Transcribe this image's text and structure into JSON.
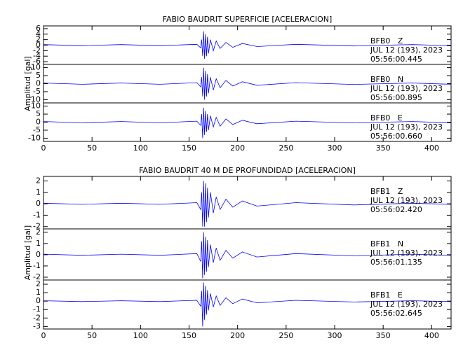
{
  "chart_data": [
    {
      "type": "line",
      "title": "FABIO BAUDRIT SUPERFICIE [ACELERACION]",
      "y_label": "Amplitud [gal]",
      "xlim": [
        0,
        420
      ],
      "xticks": [
        0,
        50,
        100,
        150,
        200,
        250,
        300,
        350,
        400
      ],
      "x": [
        0,
        40,
        80,
        120,
        158,
        162,
        163,
        164,
        165,
        166,
        167,
        168,
        169,
        170,
        172,
        175,
        178,
        182,
        188,
        195,
        205,
        220,
        260,
        320,
        380,
        420
      ],
      "panels": [
        {
          "station": "BFB0   Z",
          "date": "JUL 12 (193), 2023",
          "time": "05:56:00.445",
          "color": "#0000ff",
          "ylim": [
            -7,
            7
          ],
          "yticks": [
            -6,
            -4,
            -2,
            0,
            2,
            4,
            6
          ],
          "values": [
            0.2,
            -0.2,
            0.2,
            -0.2,
            0.3,
            -1,
            2,
            -4,
            5,
            -5,
            4,
            -4,
            3,
            -3,
            2,
            -2,
            1.5,
            -1.2,
            1,
            -0.8,
            0.6,
            -0.5,
            0.3,
            -0.3,
            0.2,
            -0.2
          ]
        },
        {
          "station": "BFB0   N",
          "date": "JUL 12 (193), 2023",
          "time": "05:56:00.895",
          "color": "#0000ff",
          "ylim": [
            -12,
            12
          ],
          "yticks": [
            -10,
            -5,
            0,
            5,
            10
          ],
          "values": [
            0.4,
            -0.4,
            0.4,
            -0.4,
            0.6,
            -2,
            4,
            -8,
            10,
            -10,
            8,
            -8,
            6,
            -6,
            4,
            -4,
            3,
            -2.5,
            2,
            -1.5,
            1.2,
            -1,
            0.6,
            -0.5,
            0.4,
            -0.4
          ]
        },
        {
          "station": "BFB0   E",
          "date": "JUL 12 (193), 2023",
          "time": "05:56:00.660",
          "color": "#0000ff",
          "ylim": [
            -12,
            12
          ],
          "yticks": [
            -10,
            -5,
            0,
            5,
            10
          ],
          "values": [
            0.4,
            -0.4,
            0.4,
            -0.4,
            0.6,
            -2,
            5,
            -10,
            9,
            -8,
            7,
            -6,
            5,
            -5,
            4,
            -3,
            3,
            -2.5,
            2,
            -1.5,
            1.2,
            -1,
            0.6,
            -0.5,
            0.4,
            -0.4
          ]
        }
      ]
    },
    {
      "type": "line",
      "title": "FABIO BAUDRIT 40 M DE PROFUNDIDAD [ACELERACION]",
      "y_label": "Amplitud [gal]",
      "xlim": [
        0,
        420
      ],
      "xticks": [
        0,
        50,
        100,
        150,
        200,
        250,
        300,
        350,
        400
      ],
      "x": [
        0,
        40,
        80,
        120,
        158,
        162,
        163,
        164,
        165,
        166,
        167,
        168,
        169,
        170,
        172,
        175,
        178,
        182,
        188,
        195,
        205,
        220,
        260,
        320,
        380,
        420
      ],
      "panels": [
        {
          "station": "BFB1   Z",
          "date": "JUL 12 (193), 2023",
          "time": "05:56:02.420",
          "color": "#0000ff",
          "ylim": [
            -2.2,
            2.4
          ],
          "yticks": [
            -2,
            -1,
            0,
            1,
            2
          ],
          "values": [
            0.05,
            -0.05,
            0.05,
            -0.05,
            0.1,
            -0.5,
            1,
            -2,
            2,
            -2,
            1.8,
            -1.6,
            1.4,
            -1.2,
            1,
            -0.8,
            0.6,
            -0.5,
            0.4,
            -0.3,
            0.25,
            -0.2,
            0.1,
            -0.1,
            0.05,
            -0.05
          ]
        },
        {
          "station": "BFB1   N",
          "date": "JUL 12 (193), 2023",
          "time": "05:56:01.135",
          "color": "#0000ff",
          "ylim": [
            -2.25,
            2.3
          ],
          "yticks": [
            -2,
            -1,
            0,
            1,
            2
          ],
          "values": [
            0.05,
            -0.05,
            0.05,
            -0.05,
            0.1,
            -0.6,
            1.2,
            -2.1,
            2,
            -1.8,
            1.6,
            -1.5,
            1.3,
            -1.1,
            0.9,
            -0.7,
            0.6,
            -0.5,
            0.4,
            -0.3,
            0.25,
            -0.2,
            0.1,
            -0.1,
            0.05,
            -0.05
          ]
        },
        {
          "station": "BFB1   E",
          "date": "JUL 12 (193), 2023",
          "time": "05:56:02.645",
          "color": "#0000ff",
          "ylim": [
            -3.3,
            2.5
          ],
          "yticks": [
            -3,
            -2,
            -1,
            0,
            1,
            2
          ],
          "values": [
            0.05,
            -0.05,
            0.05,
            -0.05,
            0.1,
            -0.6,
            1.2,
            -3,
            2.2,
            -2.2,
            1.8,
            -1.6,
            1.3,
            -1.1,
            0.9,
            -0.7,
            0.6,
            -0.5,
            0.4,
            -0.3,
            0.25,
            -0.2,
            0.1,
            -0.1,
            0.05,
            -0.05
          ]
        }
      ]
    }
  ]
}
